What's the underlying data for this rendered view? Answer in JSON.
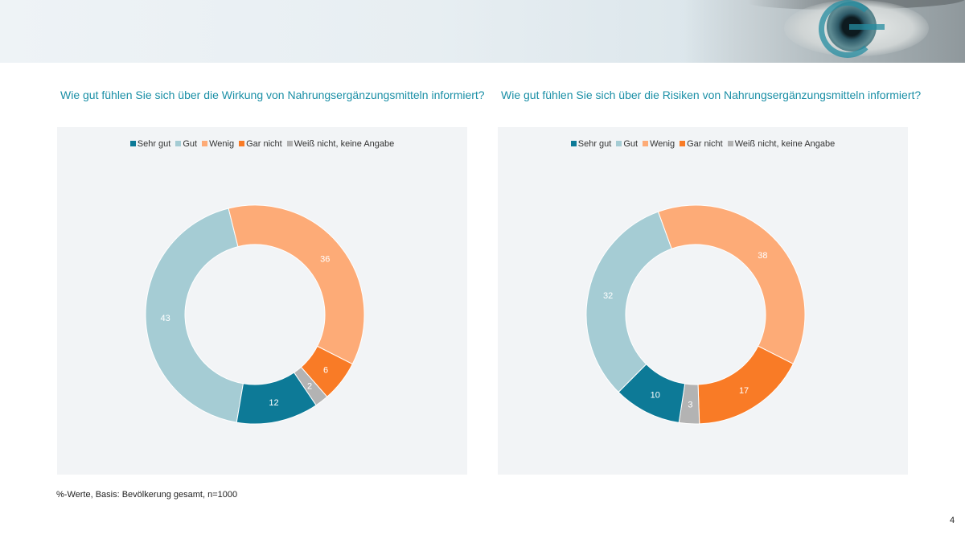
{
  "questions": {
    "left": "Wie gut fühlen Sie sich über die Wirkung von Nahrungsergänzungsmitteln informiert?",
    "right": "Wie gut fühlen Sie sich über die Risiken von Nahrungsergänzungsmitteln informiert?"
  },
  "footnote": "%-Werte, Basis: Bevölkerung gesamt, n=1000",
  "page_number": "4",
  "colors": {
    "title": "#1a8fa6",
    "panel_bg": "#f2f4f6"
  },
  "chart_data": [
    {
      "type": "pie",
      "donut": true,
      "title": "Wie gut fühlen Sie sich über die Wirkung von Nahrungsergänzungsmitteln informiert?",
      "legend_position": "top",
      "categories": [
        "Sehr gut",
        "Gut",
        "Wenig",
        "Gar nicht",
        "Weiß nicht, keine Angabe"
      ],
      "values": [
        12,
        43,
        36,
        6,
        2
      ],
      "colors": [
        "#0d7a97",
        "#a5ccd4",
        "#fdab77",
        "#f97b26",
        "#b3b3b3"
      ]
    },
    {
      "type": "pie",
      "donut": true,
      "title": "Wie gut fühlen Sie sich über die Risiken von Nahrungsergänzungsmitteln informiert?",
      "legend_position": "top",
      "categories": [
        "Sehr gut",
        "Gut",
        "Wenig",
        "Gar nicht",
        "Weiß nicht, keine Angabe"
      ],
      "values": [
        10,
        32,
        38,
        17,
        3
      ],
      "colors": [
        "#0d7a97",
        "#a5ccd4",
        "#fdab77",
        "#f97b26",
        "#b3b3b3"
      ]
    }
  ]
}
